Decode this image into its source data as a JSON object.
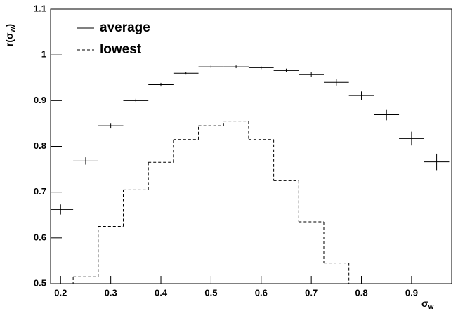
{
  "chart_data": {
    "type": "errorbar",
    "x_label": [
      "σ",
      "w"
    ],
    "y_label": [
      "r(σ",
      "w",
      ")"
    ],
    "xlim": [
      0.18,
      0.98
    ],
    "ylim": [
      0.5,
      1.1
    ],
    "xticks": [
      0.2,
      0.3,
      0.4,
      0.5,
      0.6,
      0.7,
      0.8,
      0.9
    ],
    "yticks": [
      0.5,
      0.6,
      0.7,
      0.8,
      0.9,
      1,
      1.1
    ],
    "legend": "top-left",
    "series": [
      {
        "name": "average",
        "type": "errorbar",
        "color": "#000000",
        "xerror": 0.025,
        "x": [
          0.2,
          0.25,
          0.3,
          0.35,
          0.4,
          0.45,
          0.5,
          0.55,
          0.6,
          0.65,
          0.7,
          0.75,
          0.8,
          0.85,
          0.9,
          0.95
        ],
        "values": [
          0.662,
          0.768,
          0.845,
          0.9,
          0.935,
          0.96,
          0.974,
          0.974,
          0.972,
          0.966,
          0.957,
          0.94,
          0.911,
          0.869,
          0.817,
          0.766
        ],
        "errors": [
          0.011,
          0.008,
          0.006,
          0.004,
          0.004,
          0.003,
          0.003,
          0.003,
          0.003,
          0.004,
          0.005,
          0.007,
          0.009,
          0.012,
          0.015,
          0.018
        ]
      },
      {
        "name": "lowest",
        "type": "step",
        "color": "#000000",
        "bins": [
          0.225,
          0.275,
          0.325,
          0.375,
          0.425,
          0.475,
          0.525,
          0.575,
          0.625,
          0.675,
          0.725,
          0.775
        ],
        "values": [
          0.515,
          0.625,
          0.705,
          0.765,
          0.815,
          0.845,
          0.855,
          0.815,
          0.725,
          0.635,
          0.545
        ]
      }
    ]
  }
}
